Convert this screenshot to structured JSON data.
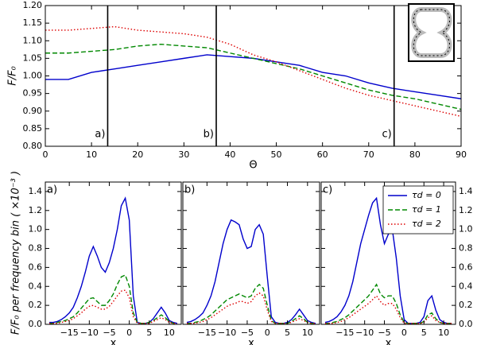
{
  "chart_data": [
    {
      "type": "line",
      "xlabel": "Θ",
      "ylabel": "F/F₀",
      "x": [
        0,
        5,
        10,
        15,
        20,
        25,
        30,
        35,
        40,
        45,
        50,
        55,
        60,
        65,
        70,
        75,
        80,
        85,
        90
      ],
      "series": [
        {
          "color": "#0000cc",
          "linestyle": "solid",
          "values": [
            0.99,
            0.99,
            1.01,
            1.02,
            1.03,
            1.04,
            1.05,
            1.06,
            1.055,
            1.05,
            1.04,
            1.03,
            1.01,
            1.0,
            0.98,
            0.965,
            0.955,
            0.945,
            0.935
          ]
        },
        {
          "color": "#008800",
          "linestyle": "dashed",
          "values": [
            1.065,
            1.065,
            1.07,
            1.075,
            1.085,
            1.09,
            1.085,
            1.08,
            1.065,
            1.05,
            1.035,
            1.02,
            1.0,
            0.98,
            0.96,
            0.945,
            0.935,
            0.92,
            0.905
          ]
        },
        {
          "color": "#dd0000",
          "linestyle": "dotted",
          "values": [
            1.13,
            1.13,
            1.135,
            1.14,
            1.13,
            1.125,
            1.12,
            1.11,
            1.09,
            1.06,
            1.04,
            1.015,
            0.99,
            0.965,
            0.945,
            0.93,
            0.915,
            0.9,
            0.885
          ]
        }
      ],
      "annotations": [
        {
          "x": 13.5,
          "label": "a)"
        },
        {
          "x": 37,
          "label": "b)"
        },
        {
          "x": 75.5,
          "label": "c)"
        }
      ],
      "xlim": [
        0,
        90
      ],
      "xticks": [
        0,
        10,
        20,
        30,
        40,
        50,
        60,
        70,
        80,
        90
      ],
      "ylim": [
        0.8,
        1.2
      ],
      "yticks": [
        {
          "value": 0.8,
          "label": "0.80"
        },
        {
          "value": 0.85,
          "label": "0.85"
        },
        {
          "value": 0.9,
          "label": "0.90"
        },
        {
          "value": 0.95,
          "label": "0.95"
        },
        {
          "value": 1.0,
          "label": "1.00"
        },
        {
          "value": 1.05,
          "label": "1.05"
        },
        {
          "value": 1.1,
          "label": "1.10"
        },
        {
          "value": 1.15,
          "label": "1.15"
        },
        {
          "value": 1.2,
          "label": "1.20"
        }
      ],
      "ytick_side": "left"
    },
    {
      "type": "line",
      "panel_label": "a)",
      "xlabel": "x",
      "ylabel": "F/F₀ per frequency bin ( ×10⁻³ )",
      "x": [
        -20,
        -19,
        -18,
        -17,
        -16,
        -15,
        -14,
        -13,
        -12,
        -11,
        -10,
        -9,
        -8,
        -7,
        -6,
        -5,
        -4,
        -3,
        -2,
        -1,
        0,
        1,
        2,
        3,
        4,
        5,
        6,
        7,
        8,
        9,
        10,
        11,
        12
      ],
      "series": [
        {
          "color": "#0000cc",
          "linestyle": "solid",
          "values": [
            0.02,
            0.02,
            0.03,
            0.05,
            0.08,
            0.12,
            0.18,
            0.28,
            0.4,
            0.55,
            0.72,
            0.82,
            0.72,
            0.6,
            0.55,
            0.65,
            0.8,
            1.0,
            1.25,
            1.33,
            1.1,
            0.3,
            0.02,
            0.01,
            0.01,
            0.02,
            0.06,
            0.12,
            0.18,
            0.12,
            0.04,
            0.02,
            0.01
          ]
        },
        {
          "color": "#008800",
          "linestyle": "dashed",
          "values": [
            0.01,
            0.01,
            0.02,
            0.03,
            0.04,
            0.06,
            0.08,
            0.12,
            0.17,
            0.22,
            0.27,
            0.28,
            0.24,
            0.2,
            0.2,
            0.25,
            0.32,
            0.42,
            0.5,
            0.52,
            0.4,
            0.12,
            0.02,
            0.01,
            0.01,
            0.02,
            0.04,
            0.07,
            0.1,
            0.07,
            0.03,
            0.01,
            0.01
          ]
        },
        {
          "color": "#dd0000",
          "linestyle": "dotted",
          "values": [
            0.01,
            0.01,
            0.01,
            0.02,
            0.03,
            0.04,
            0.06,
            0.09,
            0.12,
            0.16,
            0.19,
            0.2,
            0.18,
            0.16,
            0.16,
            0.19,
            0.24,
            0.3,
            0.35,
            0.36,
            0.28,
            0.08,
            0.01,
            0.01,
            0.01,
            0.01,
            0.03,
            0.05,
            0.07,
            0.05,
            0.02,
            0.01,
            0.01
          ]
        }
      ],
      "xlim": [
        -21,
        13
      ],
      "xticks": [
        {
          "value": -15,
          "label": "−15"
        },
        {
          "value": -10,
          "label": "−10"
        },
        {
          "value": -5,
          "label": "−5"
        },
        0,
        5,
        10
      ],
      "ylim": [
        0,
        1.5
      ],
      "yticks": [
        {
          "value": 0,
          "label": "0.0"
        },
        {
          "value": 0.2,
          "label": "0.2"
        },
        {
          "value": 0.4,
          "label": "0.4"
        },
        {
          "value": 0.6,
          "label": "0.6"
        },
        {
          "value": 0.8,
          "label": "0.8"
        },
        {
          "value": 1.0,
          "label": "1.0"
        },
        {
          "value": 1.2,
          "label": "1.2"
        },
        {
          "value": 1.4,
          "label": "1.4"
        }
      ],
      "ytick_side": "left"
    },
    {
      "type": "line",
      "panel_label": "b)",
      "xlabel": "x",
      "x": [
        -20,
        -19,
        -18,
        -17,
        -16,
        -15,
        -14,
        -13,
        -12,
        -11,
        -10,
        -9,
        -8,
        -7,
        -6,
        -5,
        -4,
        -3,
        -2,
        -1,
        0,
        1,
        2,
        3,
        4,
        5,
        6,
        7,
        8,
        9,
        10,
        11,
        12
      ],
      "series": [
        {
          "color": "#0000cc",
          "linestyle": "solid",
          "values": [
            0.02,
            0.03,
            0.05,
            0.08,
            0.12,
            0.2,
            0.3,
            0.45,
            0.65,
            0.85,
            1.0,
            1.1,
            1.08,
            1.05,
            0.9,
            0.8,
            0.82,
            1.0,
            1.05,
            0.95,
            0.5,
            0.08,
            0.02,
            0.01,
            0.01,
            0.02,
            0.05,
            0.1,
            0.16,
            0.1,
            0.04,
            0.02,
            0.01
          ]
        },
        {
          "color": "#008800",
          "linestyle": "dashed",
          "values": [
            0.01,
            0.01,
            0.02,
            0.03,
            0.05,
            0.07,
            0.1,
            0.14,
            0.18,
            0.22,
            0.26,
            0.28,
            0.3,
            0.32,
            0.3,
            0.28,
            0.3,
            0.38,
            0.42,
            0.38,
            0.2,
            0.04,
            0.01,
            0.01,
            0.01,
            0.01,
            0.03,
            0.06,
            0.09,
            0.06,
            0.02,
            0.01,
            0.01
          ]
        },
        {
          "color": "#dd0000",
          "linestyle": "dotted",
          "values": [
            0.01,
            0.01,
            0.01,
            0.02,
            0.03,
            0.05,
            0.07,
            0.1,
            0.13,
            0.16,
            0.19,
            0.21,
            0.22,
            0.24,
            0.24,
            0.22,
            0.24,
            0.3,
            0.33,
            0.3,
            0.15,
            0.03,
            0.01,
            0.01,
            0.01,
            0.01,
            0.02,
            0.04,
            0.06,
            0.04,
            0.02,
            0.01,
            0.01
          ]
        }
      ],
      "xlim": [
        -21,
        13
      ],
      "xticks": [
        {
          "value": -15,
          "label": "−15"
        },
        {
          "value": -10,
          "label": "−10"
        },
        {
          "value": -5,
          "label": "−5"
        },
        0,
        5,
        10
      ],
      "ylim": [
        0,
        1.5
      ],
      "yticks": [
        0,
        0.2,
        0.4,
        0.6,
        0.8,
        1,
        1.2,
        1.4
      ],
      "ytick_side": "none"
    },
    {
      "type": "line",
      "panel_label": "c)",
      "xlabel": "x",
      "legend": "upper right",
      "x": [
        -20,
        -19,
        -18,
        -17,
        -16,
        -15,
        -14,
        -13,
        -12,
        -11,
        -10,
        -9,
        -8,
        -7,
        -6,
        -5,
        -4,
        -3,
        -2,
        -1,
        0,
        1,
        2,
        3,
        4,
        5,
        6,
        7,
        8,
        9,
        10,
        11,
        12
      ],
      "series": [
        {
          "name": "τd = 0",
          "color": "#0000cc",
          "linestyle": "solid",
          "values": [
            0.02,
            0.03,
            0.05,
            0.08,
            0.13,
            0.2,
            0.3,
            0.45,
            0.65,
            0.85,
            1.0,
            1.15,
            1.28,
            1.33,
            1.05,
            0.85,
            0.95,
            1.0,
            0.7,
            0.3,
            0.05,
            0.01,
            0.01,
            0.01,
            0.02,
            0.08,
            0.25,
            0.3,
            0.15,
            0.05,
            0.02,
            0.01,
            0.01
          ]
        },
        {
          "name": "τd = 1",
          "color": "#008800",
          "linestyle": "dashed",
          "values": [
            0.01,
            0.01,
            0.02,
            0.03,
            0.05,
            0.07,
            0.1,
            0.14,
            0.18,
            0.22,
            0.26,
            0.3,
            0.36,
            0.42,
            0.32,
            0.28,
            0.3,
            0.3,
            0.22,
            0.1,
            0.02,
            0.01,
            0.01,
            0.01,
            0.01,
            0.03,
            0.1,
            0.12,
            0.06,
            0.02,
            0.01,
            0.01,
            0.01
          ]
        },
        {
          "name": "τd = 2",
          "color": "#dd0000",
          "linestyle": "dotted",
          "values": [
            0.01,
            0.01,
            0.01,
            0.02,
            0.03,
            0.05,
            0.07,
            0.1,
            0.13,
            0.16,
            0.19,
            0.22,
            0.26,
            0.3,
            0.24,
            0.2,
            0.22,
            0.22,
            0.16,
            0.07,
            0.01,
            0.01,
            0.01,
            0.01,
            0.01,
            0.02,
            0.07,
            0.09,
            0.04,
            0.02,
            0.01,
            0.01,
            0.01
          ]
        }
      ],
      "xlim": [
        -21,
        13
      ],
      "xticks": [
        {
          "value": -15,
          "label": "−15"
        },
        {
          "value": -10,
          "label": "−10"
        },
        {
          "value": -5,
          "label": "−5"
        },
        0,
        5,
        10
      ],
      "ylim": [
        0,
        1.5
      ],
      "yticks": [
        {
          "value": 0,
          "label": "0.0"
        },
        {
          "value": 0.2,
          "label": "0.2"
        },
        {
          "value": 0.4,
          "label": "0.4"
        },
        {
          "value": 0.6,
          "label": "0.6"
        },
        {
          "value": 0.8,
          "label": "0.8"
        },
        {
          "value": 1.0,
          "label": "1.0"
        },
        {
          "value": 1.2,
          "label": "1.2"
        },
        {
          "value": 1.4,
          "label": "1.4"
        }
      ],
      "ytick_side": "right"
    }
  ]
}
